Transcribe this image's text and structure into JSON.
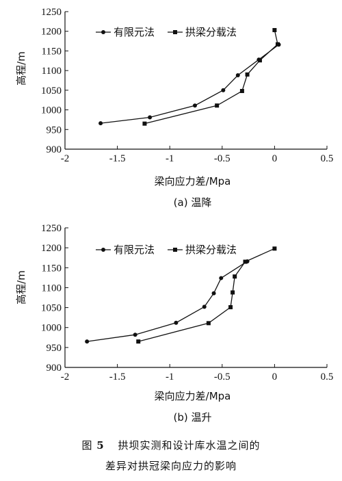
{
  "figure": {
    "number_label": "图",
    "number": "5",
    "caption_line1": "拱坝实测和设计库水温之间的",
    "caption_line2": "差异对拱冠梁向应力的影响"
  },
  "chart_data": [
    {
      "type": "line",
      "panel_label": "(a) 温降",
      "xlabel": "梁向应力差/Mpa",
      "ylabel": "高程/m",
      "xlim": [
        -2,
        0.5
      ],
      "ylim": [
        900,
        1250
      ],
      "xticks": [
        -2,
        -1.5,
        -1,
        -0.5,
        0,
        0.5
      ],
      "xtick_labels": [
        "-2",
        "-1.5",
        "-1",
        "-0.5",
        "0",
        "0.5"
      ],
      "yticks": [
        900,
        950,
        1000,
        1050,
        1100,
        1150,
        1200,
        1250
      ],
      "ytick_labels": [
        "900",
        "950",
        "1000",
        "1050",
        "1100",
        "1150",
        "1200",
        "1250"
      ],
      "grid": false,
      "legend_position": "top",
      "series": [
        {
          "name": "有限元法",
          "marker": "circle",
          "x": [
            -1.66,
            -1.19,
            -0.76,
            -0.49,
            -0.35,
            -0.15,
            0.04
          ],
          "y": [
            966,
            981,
            1011,
            1050,
            1088,
            1128,
            1166
          ]
        },
        {
          "name": "拱梁分载法",
          "marker": "square",
          "x": [
            -1.24,
            -0.55,
            -0.31,
            -0.26,
            -0.14,
            0.03,
            0.0
          ],
          "y": [
            965,
            1011,
            1048,
            1090,
            1126,
            1167,
            1203
          ]
        }
      ]
    },
    {
      "type": "line",
      "panel_label": "(b) 温升",
      "xlabel": "梁向应力差/Mpa",
      "ylabel": "高程/m",
      "xlim": [
        -2,
        0.5
      ],
      "ylim": [
        900,
        1250
      ],
      "xticks": [
        -2,
        -1.5,
        -1,
        -0.5,
        0,
        0.5
      ],
      "xtick_labels": [
        "-2",
        "-1.5",
        "-1",
        "-0.5",
        "0",
        "0.5"
      ],
      "yticks": [
        900,
        950,
        1000,
        1050,
        1100,
        1150,
        1200,
        1250
      ],
      "ytick_labels": [
        "900",
        "950",
        "1000",
        "1050",
        "1100",
        "1150",
        "1200",
        "1250"
      ],
      "grid": false,
      "legend_position": "top",
      "series": [
        {
          "name": "有限元法",
          "marker": "circle",
          "x": [
            -1.79,
            -1.33,
            -0.94,
            -0.67,
            -0.58,
            -0.51,
            -0.26
          ],
          "y": [
            965,
            982,
            1012,
            1052,
            1086,
            1124,
            1166
          ]
        },
        {
          "name": "拱梁分载法",
          "marker": "square",
          "x": [
            -1.3,
            -0.63,
            -0.42,
            -0.4,
            -0.38,
            -0.28,
            0.0
          ],
          "y": [
            965,
            1011,
            1051,
            1088,
            1128,
            1165,
            1198
          ]
        }
      ]
    }
  ]
}
